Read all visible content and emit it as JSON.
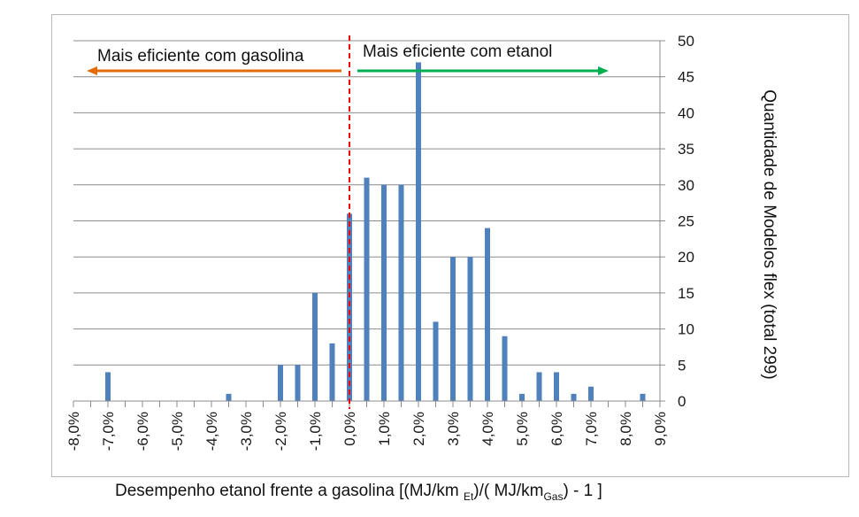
{
  "chart_data": {
    "type": "bar",
    "title": "",
    "xlabel": {
      "prefix": "Desempenho etanol frente a gasolina [(MJ/km ",
      "sub1": "Et",
      "middle": ")/( MJ/km",
      "sub2": "Gas",
      "suffix": ") - 1 ]"
    },
    "ylabel": "Quantidade de Modelos flex (total 299)",
    "y_axis_side": "right",
    "ylim": [
      0,
      50
    ],
    "y_ticks": [
      "0",
      "5",
      "10",
      "15",
      "20",
      "25",
      "30",
      "35",
      "40",
      "45",
      "50"
    ],
    "x_ticks": [
      "-8,0%",
      "-7,0%",
      "-6,0%",
      "-5,0%",
      "-4,0%",
      "-3,0%",
      "-2,0%",
      "-1,0%",
      "0,0%",
      "1,0%",
      "2,0%",
      "3,0%",
      "4,0%",
      "5,0%",
      "6,0%",
      "7,0%",
      "8,0%",
      "9,0%"
    ],
    "xlim": [
      -8.0,
      9.0
    ],
    "grid": "horizontal",
    "bar_color": "#4f81bd",
    "x": [
      -7.0,
      -3.5,
      -2.0,
      -1.5,
      -1.0,
      -0.5,
      0.0,
      0.5,
      1.0,
      1.5,
      2.0,
      2.5,
      3.0,
      3.5,
      4.0,
      4.5,
      5.0,
      5.5,
      6.0,
      6.5,
      7.0,
      8.5
    ],
    "values": [
      4,
      1,
      5,
      5,
      15,
      8,
      26,
      31,
      30,
      30,
      47,
      11,
      20,
      20,
      24,
      9,
      1,
      4,
      4,
      1,
      2,
      1
    ],
    "annotations": {
      "left_text": "Mais eficiente com gasolina",
      "right_text": "Mais eficiente com etanol",
      "left_arrow_color": "#e36c09",
      "right_arrow_color": "#00b050",
      "divider_color": "#ff0000",
      "divider_x": 0.0
    }
  }
}
